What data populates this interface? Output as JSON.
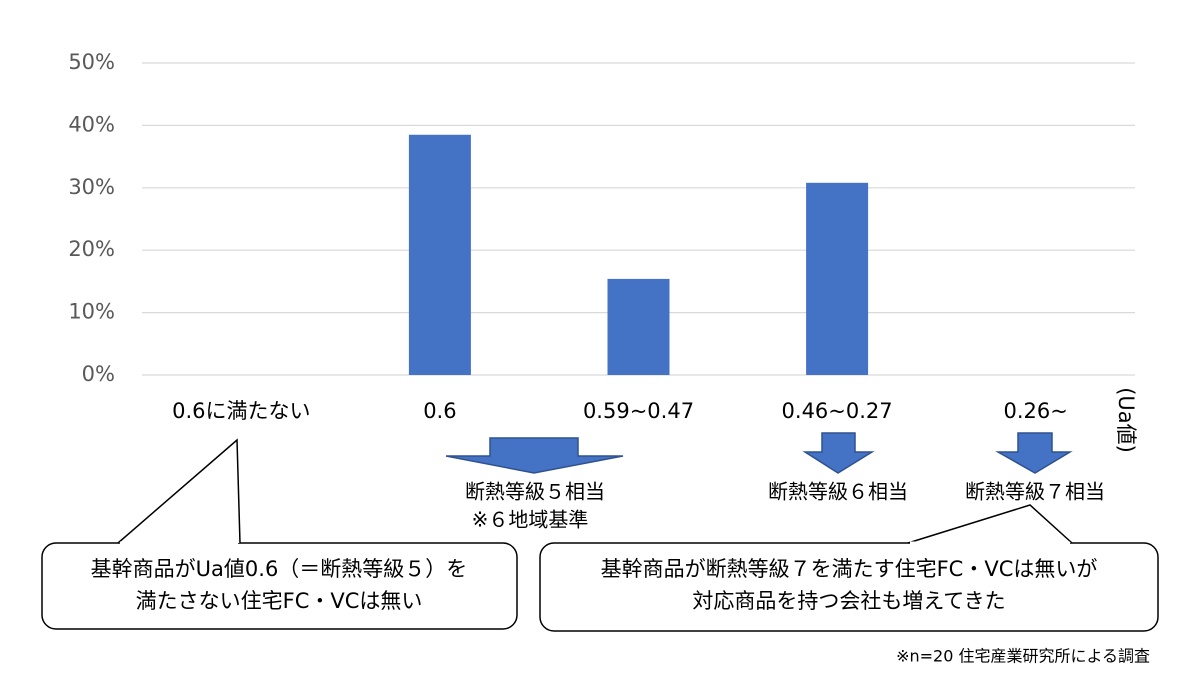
{
  "chart_data": {
    "type": "bar",
    "categories": [
      "0.6に満たない",
      "0.6",
      "0.59~0.47",
      "0.46~0.27",
      "0.26~"
    ],
    "values": [
      0,
      38.5,
      15.4,
      30.8,
      0
    ],
    "color": "#4472c4",
    "ylim": [
      0,
      50
    ],
    "yticks": [
      {
        "value": 0,
        "label": "0%"
      },
      {
        "value": 10,
        "label": "10%"
      },
      {
        "value": 20,
        "label": "20%"
      },
      {
        "value": 30,
        "label": "30%"
      },
      {
        "value": 40,
        "label": "40%"
      },
      {
        "value": 50,
        "label": "50%"
      }
    ],
    "grid": true,
    "x_label": "(Ua値)",
    "arrow_labels": [
      [
        "断熱等級５相当",
        "※６地域基準"
      ],
      [
        "断熱等級６相当"
      ],
      [
        "断熱等級７相当"
      ]
    ],
    "callouts": [
      [
        "基幹商品がUa値0.6（＝断熱等級５）を",
        "満たさない住宅FC・VCは無い"
      ],
      [
        "基幹商品が断熱等級７を満たす住宅FC・VCは無いが",
        "対応商品を持つ会社も増えてきた"
      ]
    ],
    "source": "※n=20 住宅産業研究所による調査"
  }
}
